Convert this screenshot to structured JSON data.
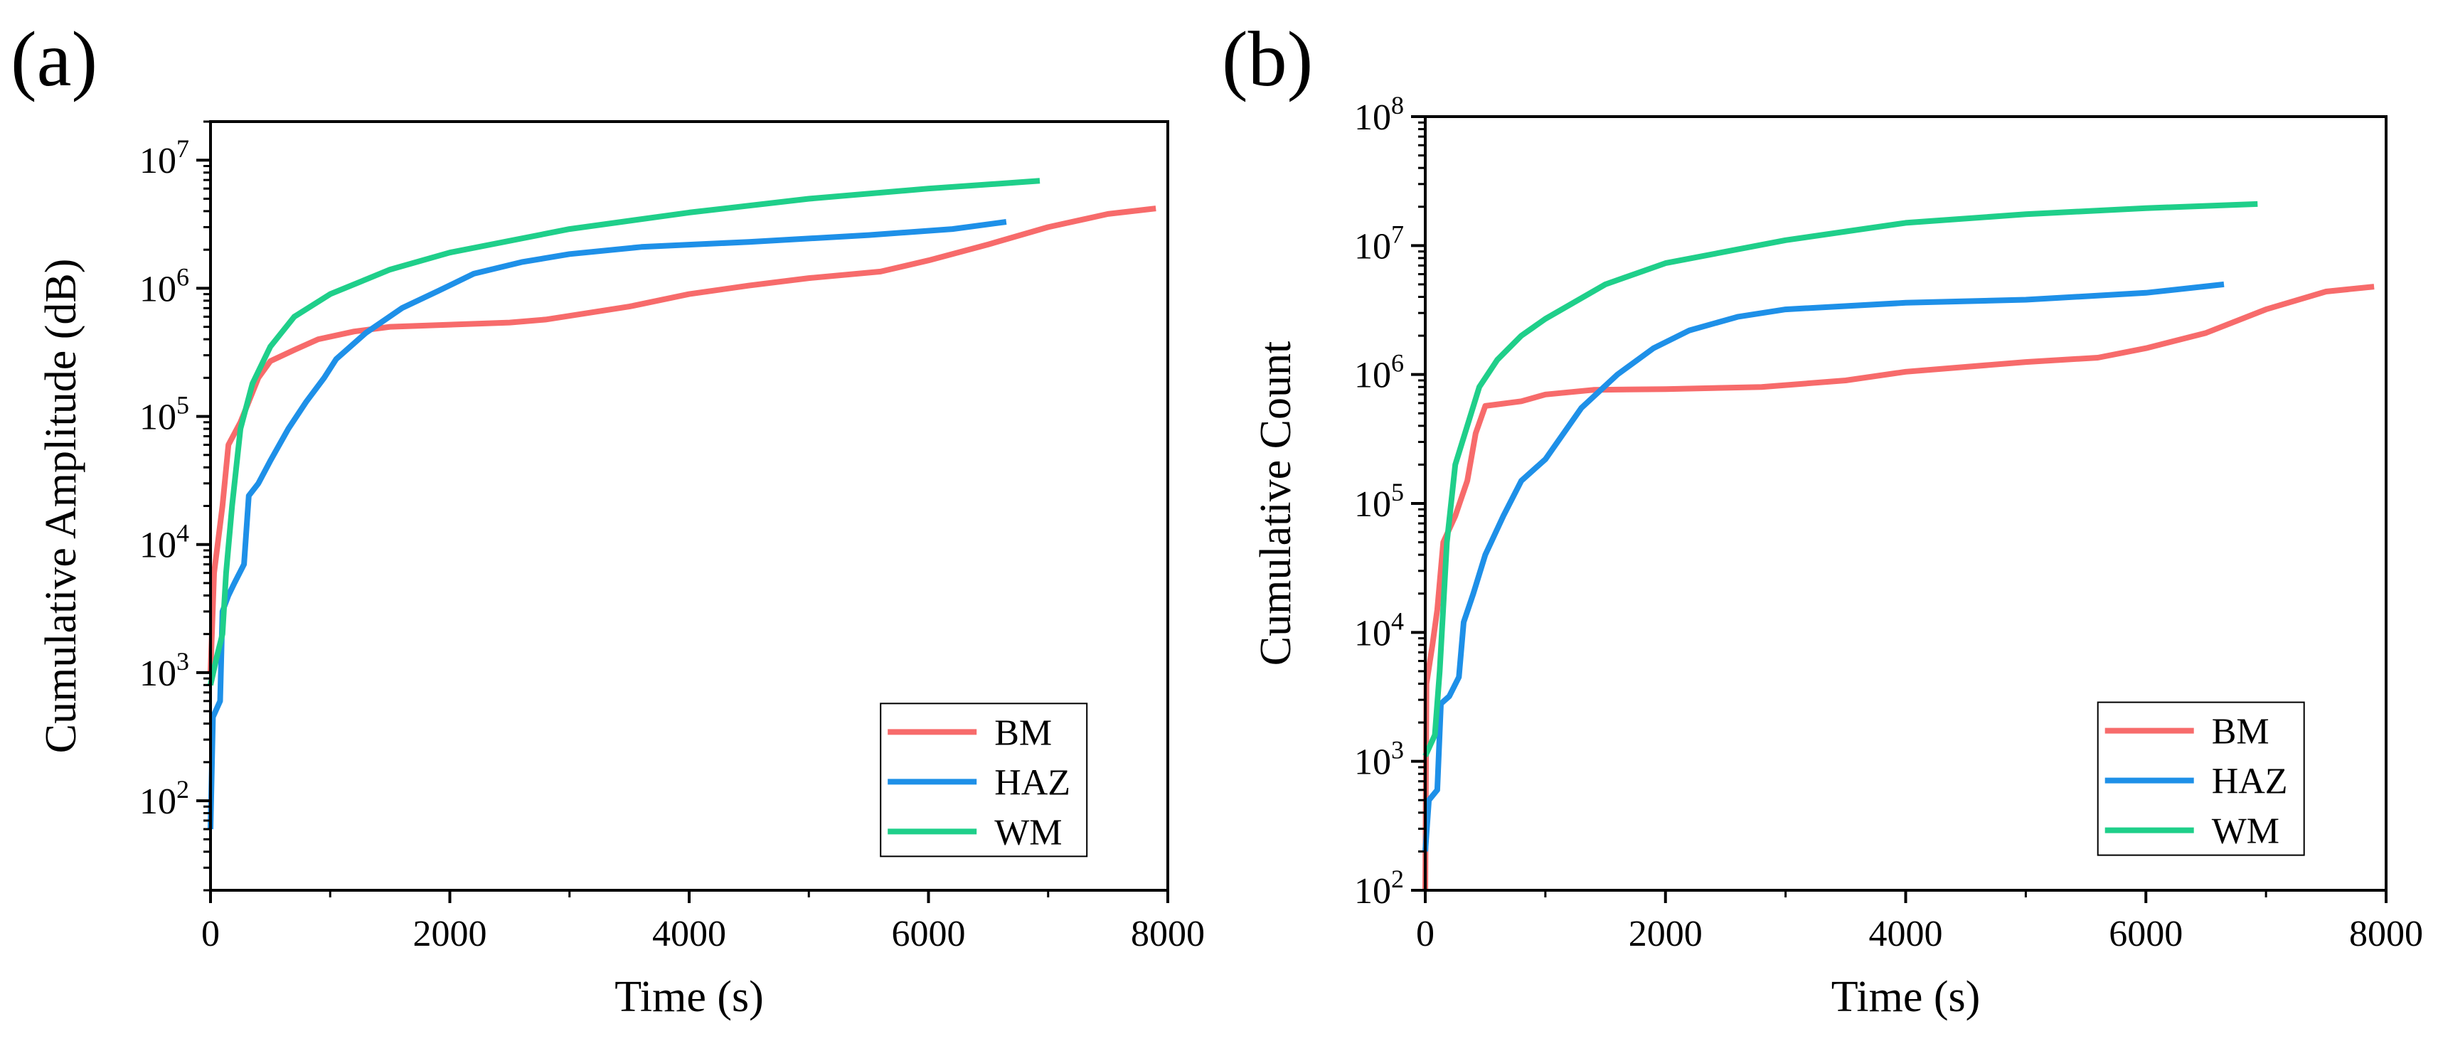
{
  "chart_data": [
    {
      "panel_label": "(a)",
      "type": "line",
      "xlabel": "Time (s)",
      "ylabel": "Cumulative Amplitude (dB)",
      "xlim": [
        0,
        8000
      ],
      "ylim": [
        20,
        20000000
      ],
      "yscale": "log",
      "xticks": [
        0,
        2000,
        4000,
        6000,
        8000
      ],
      "yticks": [
        100,
        1000,
        10000,
        100000,
        1000000,
        10000000
      ],
      "grid": false,
      "legend_position": "bottom-right",
      "series": [
        {
          "name": "BM",
          "color": "#f76b6b",
          "points": [
            [
              0,
              1000
            ],
            [
              30,
              6000
            ],
            [
              100,
              20000
            ],
            [
              150,
              60000
            ],
            [
              250,
              90000
            ],
            [
              400,
              200000
            ],
            [
              500,
              270000
            ],
            [
              700,
              330000
            ],
            [
              900,
              400000
            ],
            [
              1200,
              460000
            ],
            [
              1500,
              500000
            ],
            [
              2000,
              520000
            ],
            [
              2500,
              540000
            ],
            [
              2800,
              570000
            ],
            [
              3500,
              720000
            ],
            [
              4000,
              900000
            ],
            [
              4500,
              1050000
            ],
            [
              5000,
              1200000
            ],
            [
              5600,
              1350000
            ],
            [
              6000,
              1650000
            ],
            [
              6500,
              2200000
            ],
            [
              7000,
              3000000
            ],
            [
              7500,
              3800000
            ],
            [
              7900,
              4200000
            ]
          ]
        },
        {
          "name": "HAZ",
          "color": "#1e90e8",
          "points": [
            [
              0,
              60
            ],
            [
              20,
              450
            ],
            [
              80,
              600
            ],
            [
              100,
              3000
            ],
            [
              150,
              4000
            ],
            [
              200,
              5000
            ],
            [
              280,
              7000
            ],
            [
              320,
              24000
            ],
            [
              400,
              30000
            ],
            [
              500,
              45000
            ],
            [
              650,
              80000
            ],
            [
              800,
              130000
            ],
            [
              950,
              200000
            ],
            [
              1050,
              280000
            ],
            [
              1300,
              450000
            ],
            [
              1600,
              700000
            ],
            [
              1900,
              950000
            ],
            [
              2200,
              1300000
            ],
            [
              2600,
              1600000
            ],
            [
              3000,
              1850000
            ],
            [
              3600,
              2100000
            ],
            [
              4500,
              2300000
            ],
            [
              5500,
              2600000
            ],
            [
              6200,
              2900000
            ],
            [
              6650,
              3300000
            ]
          ]
        },
        {
          "name": "WM",
          "color": "#1fcf8a",
          "points": [
            [
              0,
              800
            ],
            [
              50,
              1300
            ],
            [
              100,
              2000
            ],
            [
              130,
              6000
            ],
            [
              180,
              20000
            ],
            [
              250,
              80000
            ],
            [
              350,
              180000
            ],
            [
              500,
              350000
            ],
            [
              700,
              600000
            ],
            [
              1000,
              900000
            ],
            [
              1500,
              1400000
            ],
            [
              2000,
              1900000
            ],
            [
              3000,
              2900000
            ],
            [
              4000,
              3900000
            ],
            [
              5000,
              5000000
            ],
            [
              6000,
              6000000
            ],
            [
              6930,
              6900000
            ]
          ]
        }
      ]
    },
    {
      "panel_label": "(b)",
      "type": "line",
      "xlabel": "Time (s)",
      "ylabel": "Cumulative Count",
      "xlim": [
        0,
        8000
      ],
      "ylim": [
        100,
        100000000
      ],
      "yscale": "log",
      "xticks": [
        0,
        2000,
        4000,
        6000,
        8000
      ],
      "yticks": [
        100,
        1000,
        10000,
        100000,
        1000000,
        10000000,
        100000000
      ],
      "grid": false,
      "legend_position": "bottom-right",
      "series": [
        {
          "name": "BM",
          "color": "#f76b6b",
          "points": [
            [
              0,
              100
            ],
            [
              10,
              4000
            ],
            [
              60,
              8000
            ],
            [
              100,
              15000
            ],
            [
              150,
              50000
            ],
            [
              250,
              80000
            ],
            [
              350,
              150000
            ],
            [
              420,
              350000
            ],
            [
              500,
              570000
            ],
            [
              800,
              620000
            ],
            [
              1000,
              700000
            ],
            [
              1400,
              760000
            ],
            [
              2000,
              770000
            ],
            [
              2800,
              800000
            ],
            [
              3500,
              900000
            ],
            [
              4000,
              1050000
            ],
            [
              5000,
              1250000
            ],
            [
              5600,
              1350000
            ],
            [
              6000,
              1600000
            ],
            [
              6500,
              2100000
            ],
            [
              7000,
              3200000
            ],
            [
              7500,
              4400000
            ],
            [
              7900,
              4800000
            ]
          ]
        },
        {
          "name": "HAZ",
          "color": "#1e90e8",
          "points": [
            [
              0,
              200
            ],
            [
              30,
              500
            ],
            [
              100,
              600
            ],
            [
              130,
              2800
            ],
            [
              200,
              3200
            ],
            [
              280,
              4500
            ],
            [
              320,
              12000
            ],
            [
              400,
              20000
            ],
            [
              500,
              40000
            ],
            [
              650,
              80000
            ],
            [
              800,
              150000
            ],
            [
              1000,
              220000
            ],
            [
              1300,
              550000
            ],
            [
              1600,
              1000000
            ],
            [
              1900,
              1600000
            ],
            [
              2200,
              2200000
            ],
            [
              2600,
              2800000
            ],
            [
              3000,
              3200000
            ],
            [
              4000,
              3600000
            ],
            [
              5000,
              3800000
            ],
            [
              6000,
              4300000
            ],
            [
              6650,
              5000000
            ]
          ]
        },
        {
          "name": "WM",
          "color": "#1fcf8a",
          "points": [
            [
              0,
              1100
            ],
            [
              80,
              1600
            ],
            [
              120,
              5000
            ],
            [
              180,
              50000
            ],
            [
              250,
              200000
            ],
            [
              350,
              400000
            ],
            [
              450,
              800000
            ],
            [
              600,
              1300000
            ],
            [
              800,
              2000000
            ],
            [
              1000,
              2700000
            ],
            [
              1500,
              5000000
            ],
            [
              2000,
              7300000
            ],
            [
              3000,
              11000000
            ],
            [
              4000,
              15000000
            ],
            [
              5000,
              17500000
            ],
            [
              6000,
              19500000
            ],
            [
              6930,
              21000000
            ]
          ]
        }
      ]
    }
  ]
}
